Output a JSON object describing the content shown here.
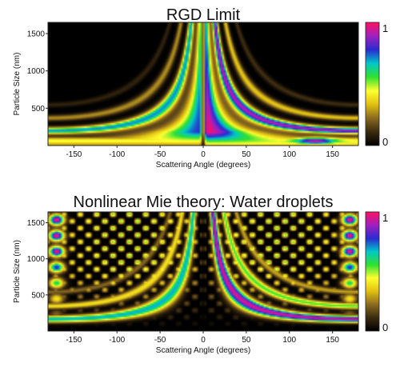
{
  "chart_data": [
    {
      "type": "heatmap",
      "title": "RGD Limit",
      "xlabel": "Scattering Angle (degrees)",
      "ylabel": "Particle Size (nm)",
      "xlim": [
        -180,
        180
      ],
      "ylim": [
        0,
        1650
      ],
      "xticks": [
        -150,
        -100,
        -50,
        0,
        50,
        100,
        150
      ],
      "yticks": [
        500,
        1000,
        1500
      ],
      "zlim": [
        0,
        1
      ],
      "colorbar_labels": [
        "1",
        "0"
      ],
      "colormap": [
        "#000000",
        "#3a2a10",
        "#8a6a20",
        "#e0c010",
        "#ffff30",
        "#30e030",
        "#00c8c8",
        "#2a2ad0",
        "#a020c0",
        "#ff1060"
      ],
      "background": "#000000"
    },
    {
      "type": "heatmap",
      "title": "Nonlinear Mie theory: Water droplets",
      "xlabel": "Scattering Angle (degrees)",
      "ylabel": "Particle Size (nm)",
      "xlim": [
        -180,
        180
      ],
      "ylim": [
        0,
        1650
      ],
      "xticks": [
        -150,
        -100,
        -50,
        0,
        50,
        100,
        150
      ],
      "yticks": [
        500,
        1000,
        1500
      ],
      "zlim": [
        0,
        1
      ],
      "colorbar_labels": [
        "1",
        "0"
      ],
      "colormap": [
        "#000000",
        "#3a2a10",
        "#8a6a20",
        "#e0c010",
        "#ffff30",
        "#30e030",
        "#00c8c8",
        "#2a2ad0",
        "#a020c0",
        "#ff1060"
      ],
      "background": "#000000"
    }
  ]
}
